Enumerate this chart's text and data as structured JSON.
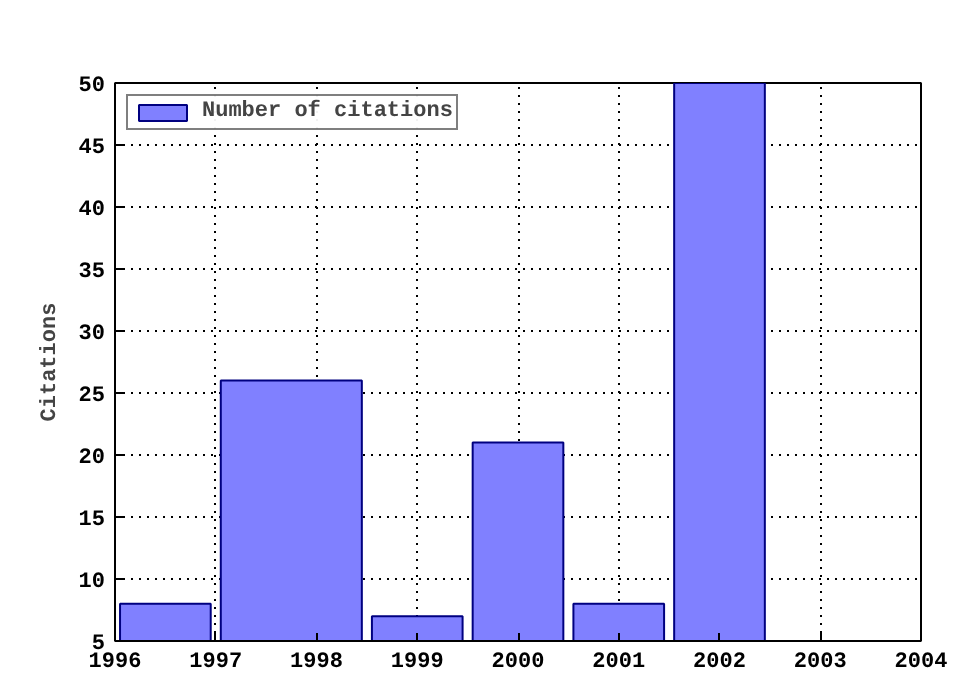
{
  "chart_data": {
    "type": "histogram",
    "ylabel": "Citations",
    "bins": [
      1996,
      1997,
      1998.5,
      1999.5,
      2000.5,
      2001.5,
      2002.5
    ],
    "series": [
      {
        "name": "Number of citations",
        "color": "#8080ff",
        "values": [
          8,
          26,
          7,
          21,
          8,
          50
        ]
      }
    ],
    "xlim": [
      1996,
      2004
    ],
    "xticks": [
      1996,
      1997,
      1998,
      1999,
      2000,
      2001,
      2002,
      2003,
      2004
    ],
    "ylim": [
      5,
      50
    ],
    "yticks": [
      5,
      10,
      15,
      20,
      25,
      30,
      35,
      40,
      45,
      50
    ],
    "grid": true,
    "legend": "top left"
  }
}
